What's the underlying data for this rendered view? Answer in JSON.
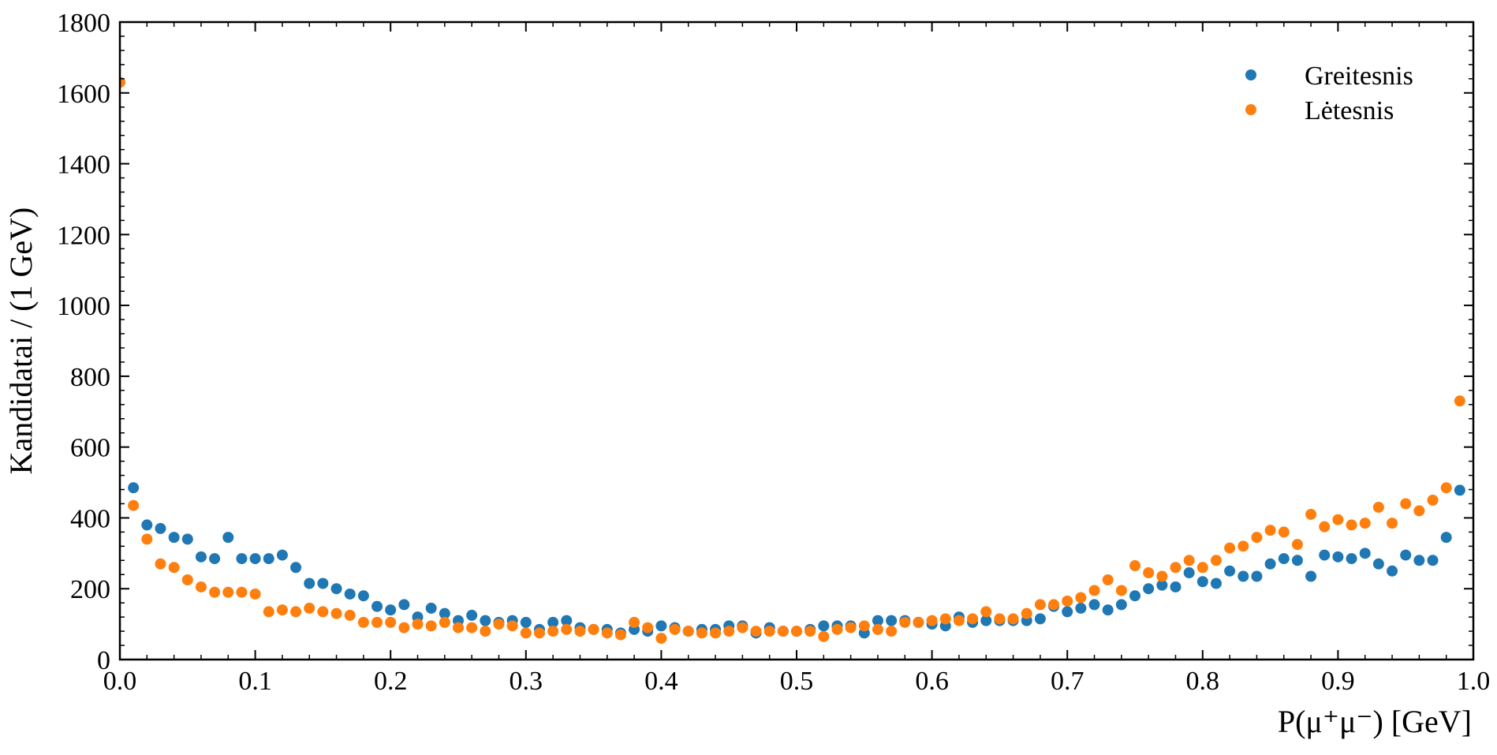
{
  "chart_data": {
    "type": "scatter",
    "xlabel": "P(μ⁺μ⁻) [GeV]",
    "ylabel": "Kandidatai / (1 GeV)",
    "xlim": [
      0,
      1
    ],
    "ylim": [
      0,
      1800
    ],
    "xticks": [
      0.0,
      0.1,
      0.2,
      0.3,
      0.4,
      0.5,
      0.6,
      0.7,
      0.8,
      0.9,
      1.0
    ],
    "xtick_labels": [
      "0.0",
      "0.1",
      "0.2",
      "0.3",
      "0.4",
      "0.5",
      "0.6",
      "0.7",
      "0.8",
      "0.9",
      "1.0"
    ],
    "yticks": [
      0,
      200,
      400,
      600,
      800,
      1000,
      1200,
      1400,
      1600,
      1800
    ],
    "ytick_labels": [
      "0",
      "200",
      "400",
      "600",
      "800",
      "1000",
      "1200",
      "1400",
      "1600",
      "1800"
    ],
    "legend_position": "top-right",
    "grid": false,
    "x": [
      0.0,
      0.01,
      0.02,
      0.03,
      0.04,
      0.05,
      0.06,
      0.07,
      0.08,
      0.09,
      0.1,
      0.11,
      0.12,
      0.13,
      0.14,
      0.15,
      0.16,
      0.17,
      0.18,
      0.19,
      0.2,
      0.21,
      0.22,
      0.23,
      0.24,
      0.25,
      0.26,
      0.27,
      0.28,
      0.29,
      0.3,
      0.31,
      0.32,
      0.33,
      0.34,
      0.35,
      0.36,
      0.37,
      0.38,
      0.39,
      0.4,
      0.41,
      0.42,
      0.43,
      0.44,
      0.45,
      0.46,
      0.47,
      0.48,
      0.49,
      0.5,
      0.51,
      0.52,
      0.53,
      0.54,
      0.55,
      0.56,
      0.57,
      0.58,
      0.59,
      0.6,
      0.61,
      0.62,
      0.63,
      0.64,
      0.65,
      0.66,
      0.67,
      0.68,
      0.69,
      0.7,
      0.71,
      0.72,
      0.73,
      0.74,
      0.75,
      0.76,
      0.77,
      0.78,
      0.79,
      0.8,
      0.81,
      0.82,
      0.83,
      0.84,
      0.85,
      0.86,
      0.87,
      0.88,
      0.89,
      0.9,
      0.91,
      0.92,
      0.93,
      0.94,
      0.95,
      0.96,
      0.97,
      0.98,
      0.99
    ],
    "series": [
      {
        "name": "Greitesnis",
        "color": "#1f77b4",
        "values": [
          null,
          485,
          380,
          370,
          345,
          340,
          290,
          285,
          345,
          285,
          285,
          285,
          295,
          260,
          215,
          215,
          200,
          185,
          180,
          150,
          140,
          155,
          120,
          145,
          130,
          110,
          125,
          110,
          105,
          110,
          105,
          85,
          105,
          110,
          90,
          85,
          85,
          75,
          85,
          80,
          95,
          90,
          80,
          85,
          85,
          95,
          95,
          75,
          90,
          80,
          80,
          85,
          95,
          95,
          95,
          75,
          110,
          110,
          110,
          105,
          100,
          95,
          120,
          105,
          110,
          110,
          110,
          110,
          115,
          150,
          135,
          145,
          155,
          140,
          155,
          180,
          200,
          210,
          205,
          245,
          220,
          215,
          250,
          235,
          235,
          270,
          285,
          280,
          235,
          295,
          290,
          285,
          300,
          270,
          250,
          295,
          280,
          280,
          345,
          478
        ]
      },
      {
        "name": "Lėtesnis",
        "color": "#ff7f0e",
        "values": [
          1630,
          435,
          340,
          270,
          260,
          225,
          205,
          190,
          190,
          190,
          185,
          135,
          140,
          135,
          145,
          135,
          130,
          125,
          105,
          105,
          105,
          90,
          100,
          95,
          105,
          90,
          90,
          80,
          100,
          95,
          75,
          75,
          80,
          85,
          80,
          85,
          75,
          70,
          105,
          90,
          60,
          85,
          80,
          75,
          75,
          80,
          90,
          80,
          80,
          80,
          80,
          80,
          65,
          85,
          90,
          95,
          85,
          80,
          105,
          105,
          110,
          115,
          110,
          115,
          135,
          115,
          115,
          130,
          155,
          155,
          165,
          175,
          195,
          225,
          195,
          265,
          245,
          235,
          260,
          280,
          260,
          280,
          315,
          320,
          345,
          365,
          360,
          325,
          410,
          375,
          395,
          380,
          385,
          430,
          385,
          440,
          420,
          450,
          485,
          730
        ]
      }
    ]
  }
}
